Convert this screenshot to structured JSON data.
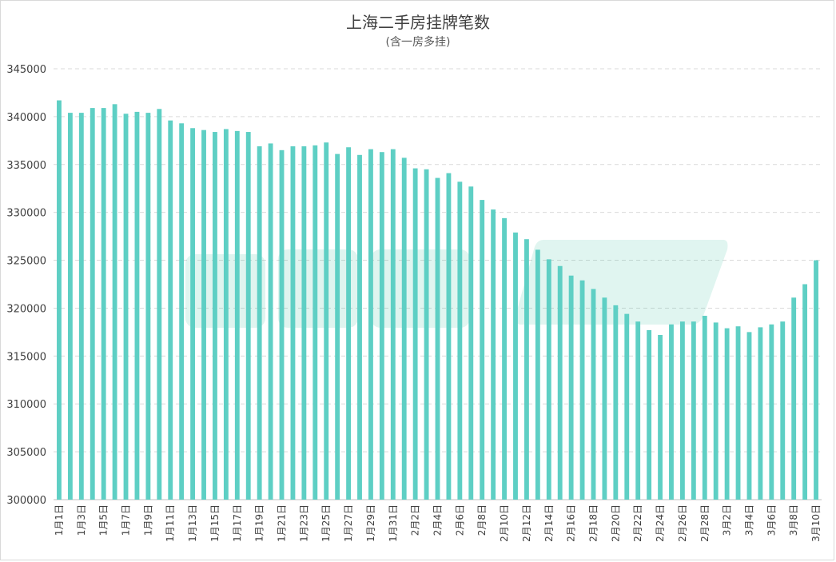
{
  "chart_data": {
    "type": "bar",
    "title": "上海二手房挂牌笔数",
    "subtitle": "(含一房多挂)",
    "xlabel": "",
    "ylabel": "",
    "ylim": [
      300000,
      345000
    ],
    "yticks": [
      300000,
      305000,
      310000,
      315000,
      320000,
      325000,
      330000,
      335000,
      340000,
      345000
    ],
    "grid": true,
    "bar_color": "#5ecfc4",
    "categories": [
      "1月1日",
      "1月2日",
      "1月3日",
      "1月4日",
      "1月5日",
      "1月6日",
      "1月7日",
      "1月8日",
      "1月9日",
      "1月10日",
      "1月11日",
      "1月12日",
      "1月13日",
      "1月14日",
      "1月15日",
      "1月16日",
      "1月17日",
      "1月18日",
      "1月19日",
      "1月20日",
      "1月21日",
      "1月22日",
      "1月23日",
      "1月24日",
      "1月25日",
      "1月26日",
      "1月27日",
      "1月28日",
      "1月29日",
      "1月30日",
      "1月31日",
      "2月1日",
      "2月2日",
      "2月3日",
      "2月4日",
      "2月5日",
      "2月6日",
      "2月7日",
      "2月8日",
      "2月9日",
      "2月10日",
      "2月11日",
      "2月12日",
      "2月13日",
      "2月14日",
      "2月15日",
      "2月16日",
      "2月17日",
      "2月18日",
      "2月19日",
      "2月20日",
      "2月21日",
      "2月22日",
      "2月23日",
      "2月24日",
      "2月25日",
      "2月26日",
      "2月27日",
      "2月28日",
      "3月1日",
      "3月2日",
      "3月3日",
      "3月4日",
      "3月5日",
      "3月6日",
      "3月7日",
      "3月8日",
      "3月9日",
      "3月10日"
    ],
    "values": [
      341700,
      340400,
      340400,
      340900,
      340900,
      341300,
      340300,
      340500,
      340400,
      340800,
      339600,
      339300,
      338800,
      338600,
      338400,
      338700,
      338500,
      338400,
      336900,
      337200,
      336500,
      336900,
      336900,
      337000,
      337300,
      336100,
      336800,
      336000,
      336600,
      336300,
      336600,
      335700,
      334600,
      334500,
      333600,
      334100,
      333200,
      332700,
      331300,
      330300,
      329400,
      327900,
      327200,
      326100,
      325100,
      324400,
      323400,
      322900,
      322000,
      321100,
      320300,
      319400,
      318600,
      317700,
      317200,
      318300,
      318600,
      318600,
      319200,
      318500,
      317900,
      318100,
      317500,
      318000,
      318300,
      318600,
      321100,
      322500,
      325000
    ]
  }
}
